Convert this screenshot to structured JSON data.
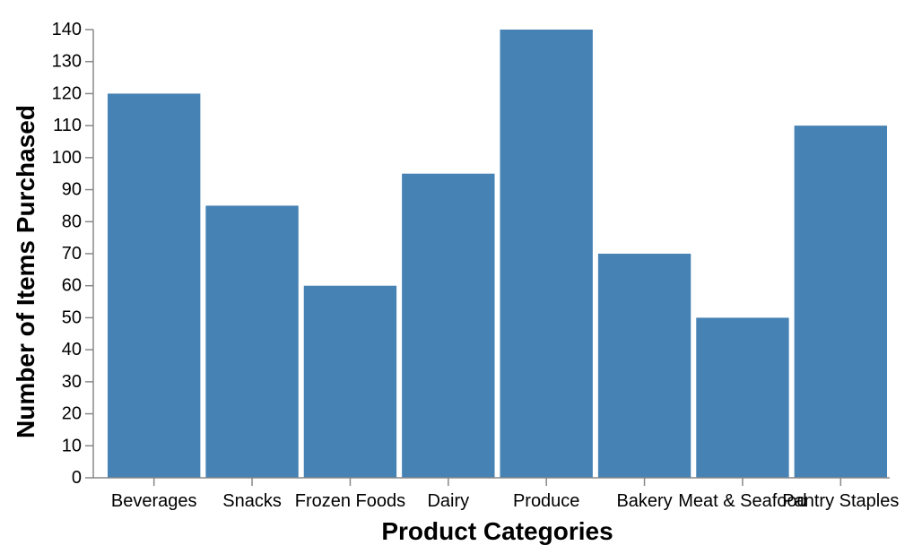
{
  "chart_data": {
    "type": "bar",
    "categories": [
      "Beverages",
      "Snacks",
      "Frozen Foods",
      "Dairy",
      "Produce",
      "Bakery",
      "Meat & Seafood",
      "Pantry Staples"
    ],
    "values": [
      120,
      85,
      60,
      95,
      140,
      70,
      50,
      110
    ],
    "xlabel": "Product Categories",
    "ylabel": "Number of Items Purchased",
    "ylim": [
      0,
      140
    ],
    "yticks": [
      0,
      10,
      20,
      30,
      40,
      50,
      60,
      70,
      80,
      90,
      100,
      110,
      120,
      130,
      140
    ],
    "grid": false,
    "bar_color": "#4682b4",
    "axis_color": "#888888"
  }
}
